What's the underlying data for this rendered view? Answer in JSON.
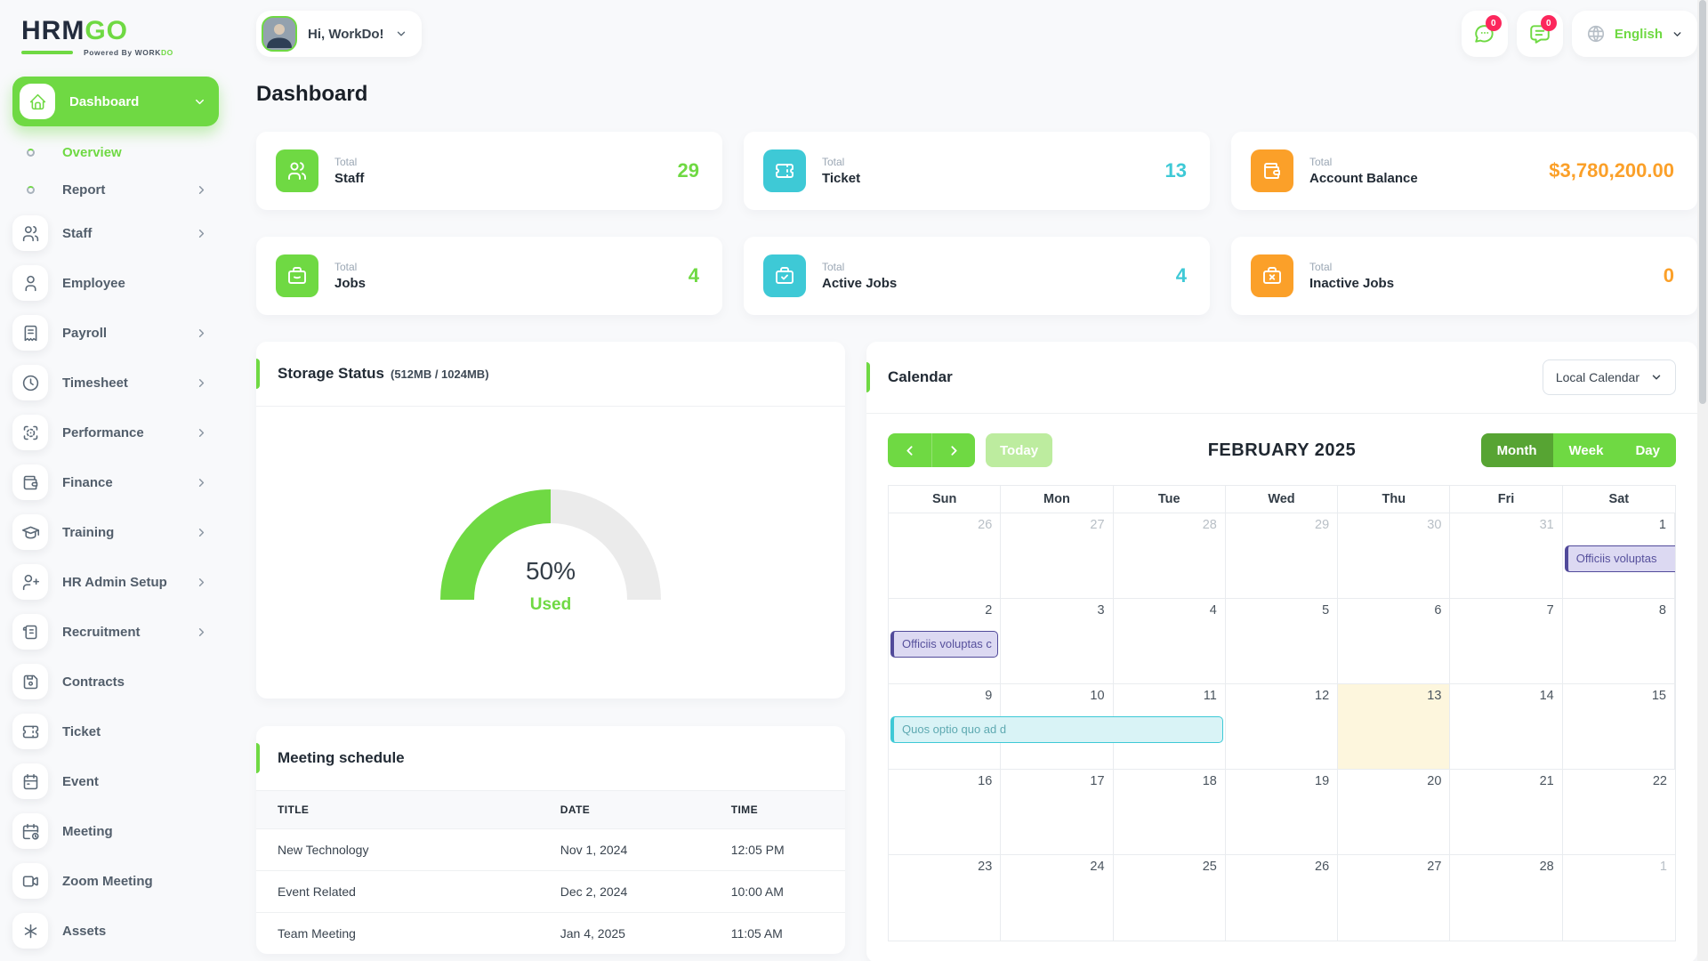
{
  "brand": {
    "part1": "HRM",
    "part2": "GO",
    "powered_prefix": "Powered By ",
    "powered_brand1": "WORK",
    "powered_brand2": "DO"
  },
  "header": {
    "greeting": "Hi, WorkDo!",
    "chat_badge": "0",
    "notification_badge": "0",
    "language": "English"
  },
  "page": {
    "title": "Dashboard"
  },
  "theme": {
    "green": "#6fd943",
    "teal": "#3ec9d6",
    "orange": "#fba029",
    "badge_red": "#fc275c"
  },
  "sidebar": {
    "items": [
      {
        "label": "Dashboard",
        "icon": "home",
        "active": true,
        "chevron": "down",
        "type": "main"
      },
      {
        "label": "Overview",
        "type": "sub",
        "active": true
      },
      {
        "label": "Report",
        "type": "sub",
        "chevron": "right"
      },
      {
        "label": "Staff",
        "icon": "users",
        "chevron": "right",
        "type": "main"
      },
      {
        "label": "Employee",
        "icon": "user",
        "type": "main"
      },
      {
        "label": "Payroll",
        "icon": "receipt",
        "chevron": "right",
        "type": "main"
      },
      {
        "label": "Timesheet",
        "icon": "clock",
        "chevron": "right",
        "type": "main"
      },
      {
        "label": "Performance",
        "icon": "focus",
        "chevron": "right",
        "type": "main"
      },
      {
        "label": "Finance",
        "icon": "wallet",
        "chevron": "right",
        "type": "main"
      },
      {
        "label": "Training",
        "icon": "graduation-cap",
        "chevron": "right",
        "type": "main"
      },
      {
        "label": "HR Admin Setup",
        "icon": "user-plus",
        "chevron": "right",
        "type": "main"
      },
      {
        "label": "Recruitment",
        "icon": "scroll",
        "chevron": "right",
        "type": "main"
      },
      {
        "label": "Contracts",
        "icon": "floppy",
        "type": "main"
      },
      {
        "label": "Ticket",
        "icon": "ticket",
        "type": "main"
      },
      {
        "label": "Event",
        "icon": "calendar",
        "type": "main"
      },
      {
        "label": "Meeting",
        "icon": "calendar-clock",
        "type": "main"
      },
      {
        "label": "Zoom Meeting",
        "icon": "video",
        "type": "main"
      },
      {
        "label": "Assets",
        "icon": "asterisk",
        "type": "main"
      }
    ]
  },
  "stats": [
    {
      "prefix": "Total",
      "name": "Staff",
      "value": "29",
      "icon": "users",
      "color": "#6fd943"
    },
    {
      "prefix": "Total",
      "name": "Ticket",
      "value": "13",
      "icon": "ticket",
      "color": "#3ec9d6"
    },
    {
      "prefix": "Total",
      "name": "Account Balance",
      "value": "$3,780,200.00",
      "icon": "wallet",
      "color": "#fba029"
    },
    {
      "prefix": "Total",
      "name": "Jobs",
      "value": "4",
      "icon": "briefcase",
      "color": "#6fd943"
    },
    {
      "prefix": "Total",
      "name": "Active Jobs",
      "value": "4",
      "icon": "briefcase-check",
      "color": "#3ec9d6"
    },
    {
      "prefix": "Total",
      "name": "Inactive Jobs",
      "value": "0",
      "icon": "briefcase-x",
      "color": "#fba029"
    }
  ],
  "storage": {
    "title": "Storage Status",
    "subtitle": "(512MB / 1024MB)",
    "percent": "50%",
    "used_label": "Used",
    "used_mb": 512,
    "total_mb": 1024,
    "used_color": "#6fd943",
    "track_color": "#ebebeb"
  },
  "meetings": {
    "title": "Meeting schedule",
    "columns": [
      "TITLE",
      "DATE",
      "TIME"
    ],
    "rows": [
      [
        "New Technology",
        "Nov 1, 2024",
        "12:05 PM"
      ],
      [
        "Event Related",
        "Dec 2, 2024",
        "10:00 AM"
      ],
      [
        "Team Meeting",
        "Jan 4, 2025",
        "11:05 AM"
      ]
    ]
  },
  "calendar": {
    "title": "Calendar",
    "selector_label": "Local Calendar",
    "today_label": "Today",
    "month_title": "FEBRUARY 2025",
    "views": [
      {
        "label": "Month",
        "active": true
      },
      {
        "label": "Week",
        "active": false
      },
      {
        "label": "Day",
        "active": false
      }
    ],
    "day_headers": [
      "Sun",
      "Mon",
      "Tue",
      "Wed",
      "Thu",
      "Fri",
      "Sat"
    ],
    "weeks": [
      [
        {
          "d": "26",
          "m": true
        },
        {
          "d": "27",
          "m": true
        },
        {
          "d": "28",
          "m": true
        },
        {
          "d": "29",
          "m": true
        },
        {
          "d": "30",
          "m": true
        },
        {
          "d": "31",
          "m": true
        },
        {
          "d": "1"
        }
      ],
      [
        {
          "d": "2"
        },
        {
          "d": "3"
        },
        {
          "d": "4"
        },
        {
          "d": "5"
        },
        {
          "d": "6"
        },
        {
          "d": "7"
        },
        {
          "d": "8"
        }
      ],
      [
        {
          "d": "9"
        },
        {
          "d": "10"
        },
        {
          "d": "11"
        },
        {
          "d": "12"
        },
        {
          "d": "13",
          "today": true
        },
        {
          "d": "14"
        },
        {
          "d": "15"
        }
      ],
      [
        {
          "d": "16"
        },
        {
          "d": "17"
        },
        {
          "d": "18"
        },
        {
          "d": "19"
        },
        {
          "d": "20"
        },
        {
          "d": "21"
        },
        {
          "d": "22"
        }
      ],
      [
        {
          "d": "23"
        },
        {
          "d": "24"
        },
        {
          "d": "25"
        },
        {
          "d": "26"
        },
        {
          "d": "27"
        },
        {
          "d": "28"
        },
        {
          "d": "1",
          "m": true
        }
      ]
    ],
    "events": [
      {
        "week": 0,
        "start": 6,
        "span": 1,
        "label": "Officiis voluptas",
        "bg": "#dcd9f2",
        "border": "#514a9a",
        "text": "#56509c",
        "cut_right": true
      },
      {
        "week": 1,
        "start": 0,
        "span": 1,
        "label": "Officiis voluptas c",
        "bg": "#dcd9f2",
        "border": "#514a9a",
        "text": "#56509c",
        "cut_right": false
      },
      {
        "week": 2,
        "start": 0,
        "span": 3,
        "label": "Quos optio quo ad d",
        "bg": "#d9f3f6",
        "border": "#3ec9d6",
        "text": "#5ea9b1",
        "cut_right": false
      }
    ]
  }
}
